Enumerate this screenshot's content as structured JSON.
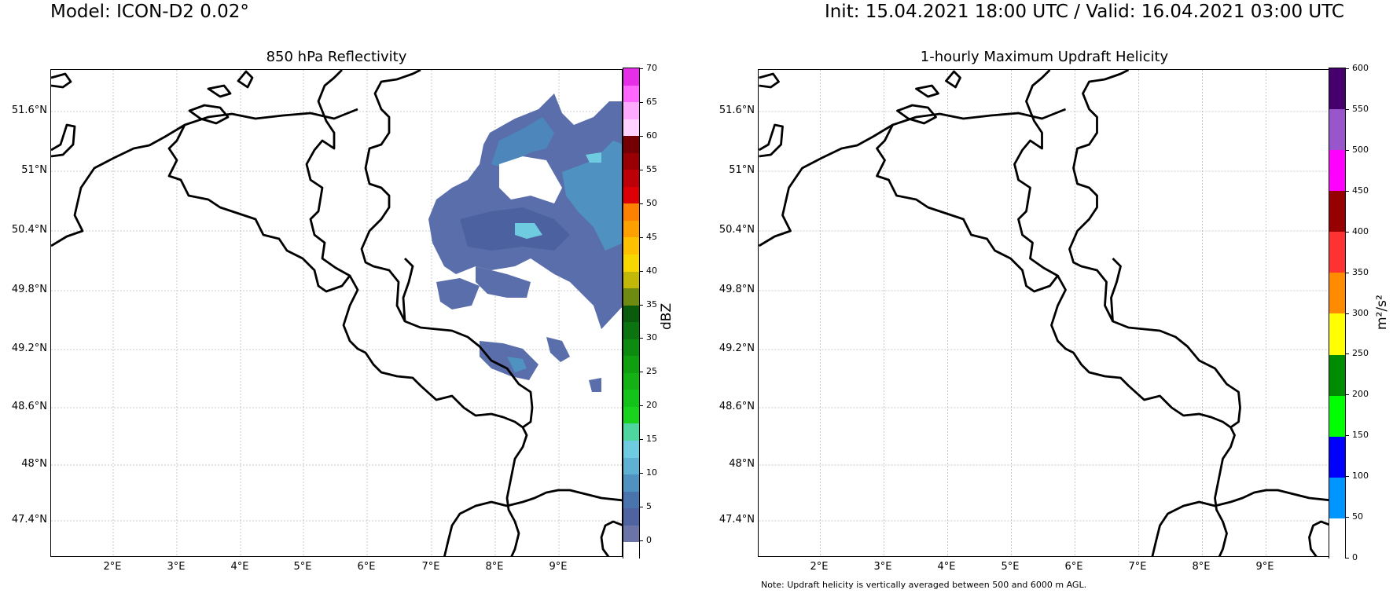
{
  "header": {
    "model": "Model: ICON-D2 0.02°",
    "time": "Init: 15.04.2021 18:00 UTC / Valid: 16.04.2021 03:00 UTC"
  },
  "panels": {
    "left": {
      "title": "850 hPa Reflectivity",
      "cbar_label": "dBZ",
      "cbar_ticks": [
        "70",
        "65",
        "60",
        "55",
        "50",
        "45",
        "40",
        "35",
        "30",
        "25",
        "20",
        "15",
        "10",
        "5",
        "0"
      ],
      "cbar_colors": [
        "#ffffff",
        "#6a74a6",
        "#4f63a0",
        "#4a74ae",
        "#4f91c0",
        "#5fb1d4",
        "#6fcce0",
        "#4fd6a0",
        "#18d21e",
        "#14c31a",
        "#13b114",
        "#119f12",
        "#0d8a10",
        "#0b7410",
        "#0a5c0c",
        "#6e8a10",
        "#c2b80a",
        "#f6d700",
        "#fec100",
        "#fea100",
        "#fd8100",
        "#dc0006",
        "#bd0007",
        "#990004",
        "#750003",
        "#ffd2ff",
        "#ffaaff",
        "#ff66ff",
        "#e62ee6"
      ]
    },
    "right": {
      "title": "1-hourly Maximum Updraft Helicity",
      "cbar_label": "m²/s²",
      "cbar_ticks": [
        "600",
        "550",
        "500",
        "450",
        "400",
        "350",
        "300",
        "250",
        "200",
        "150",
        "100",
        "50",
        "0"
      ],
      "cbar_colors": [
        "#ffffff",
        "#0096ff",
        "#0000ff",
        "#00ff00",
        "#008c00",
        "#ffff00",
        "#ff8c00",
        "#ff3232",
        "#960000",
        "#ff00ff",
        "#9955cc",
        "#46006e"
      ]
    }
  },
  "axes": {
    "lat_labels": [
      "51.6°N",
      "51°N",
      "50.4°N",
      "49.8°N",
      "49.2°N",
      "48.6°N",
      "48°N",
      "47.4°N"
    ],
    "lon_labels": [
      "2°E",
      "3°E",
      "4°E",
      "5°E",
      "6°E",
      "7°E",
      "8°E",
      "9°E"
    ]
  },
  "note": "Note: Updraft helicity is vertically averaged between 500 and 6000 m AGL."
}
